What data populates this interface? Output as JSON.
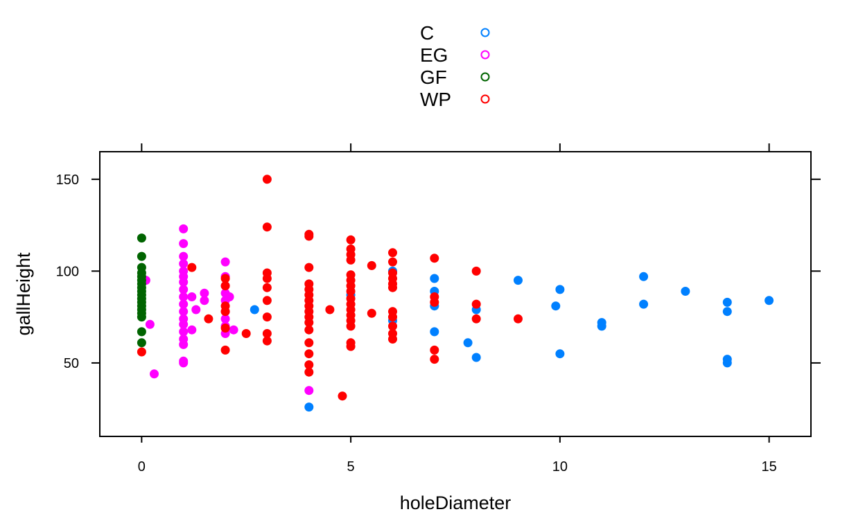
{
  "chart_data": {
    "type": "scatter",
    "title": "",
    "xlabel": "holeDiameter",
    "ylabel": "gallHeight",
    "xlim": [
      -1,
      16
    ],
    "ylim": [
      10,
      165
    ],
    "xticks": [
      0,
      5,
      10,
      15
    ],
    "yticks": [
      50,
      100,
      150
    ],
    "grid": false,
    "legend_position": "top-center",
    "series": [
      {
        "name": "C",
        "color": "#0080FF",
        "points": [
          [
            2.7,
            79
          ],
          [
            4,
            26
          ],
          [
            5,
            87
          ],
          [
            6,
            100
          ],
          [
            6,
            73
          ],
          [
            7,
            96
          ],
          [
            7,
            89
          ],
          [
            7,
            81
          ],
          [
            7,
            67
          ],
          [
            7.8,
            61
          ],
          [
            8,
            79
          ],
          [
            8,
            53
          ],
          [
            9,
            95
          ],
          [
            9.9,
            81
          ],
          [
            10,
            90
          ],
          [
            10,
            55
          ],
          [
            11,
            72
          ],
          [
            11,
            70
          ],
          [
            12,
            97
          ],
          [
            12,
            82
          ],
          [
            13,
            89
          ],
          [
            14,
            83
          ],
          [
            14,
            78
          ],
          [
            14,
            52
          ],
          [
            14,
            50
          ],
          [
            15,
            84
          ]
        ]
      },
      {
        "name": "EG",
        "color": "#FF00FF",
        "points": [
          [
            0.1,
            95
          ],
          [
            0.2,
            71
          ],
          [
            0.3,
            44
          ],
          [
            1,
            123
          ],
          [
            1,
            115
          ],
          [
            1,
            108
          ],
          [
            1,
            104
          ],
          [
            1,
            100
          ],
          [
            1,
            97
          ],
          [
            1,
            94
          ],
          [
            1,
            90
          ],
          [
            1,
            86
          ],
          [
            1,
            82
          ],
          [
            1,
            78
          ],
          [
            1,
            74
          ],
          [
            1,
            71
          ],
          [
            1,
            67
          ],
          [
            1,
            63
          ],
          [
            1,
            60
          ],
          [
            1,
            51
          ],
          [
            1,
            50
          ],
          [
            1.2,
            86
          ],
          [
            1.2,
            68
          ],
          [
            1.3,
            79
          ],
          [
            1.5,
            88
          ],
          [
            1.5,
            84
          ],
          [
            2,
            105
          ],
          [
            2,
            97
          ],
          [
            2,
            92
          ],
          [
            2,
            88
          ],
          [
            2,
            84
          ],
          [
            2,
            78
          ],
          [
            2,
            74
          ],
          [
            2,
            70
          ],
          [
            2,
            66
          ],
          [
            2.1,
            86
          ],
          [
            2.2,
            68
          ],
          [
            4,
            35
          ]
        ]
      },
      {
        "name": "GF",
        "color": "#006400",
        "points": [
          [
            0,
            118
          ],
          [
            0,
            108
          ],
          [
            0,
            102
          ],
          [
            0,
            99
          ],
          [
            0,
            97
          ],
          [
            0,
            95
          ],
          [
            0,
            93
          ],
          [
            0,
            91
          ],
          [
            0,
            89
          ],
          [
            0,
            87
          ],
          [
            0,
            85
          ],
          [
            0,
            83
          ],
          [
            0,
            81
          ],
          [
            0,
            79
          ],
          [
            0,
            77
          ],
          [
            0,
            75
          ],
          [
            0,
            67
          ],
          [
            0,
            61
          ]
        ]
      },
      {
        "name": "WP",
        "color": "#FF0000",
        "points": [
          [
            0,
            56
          ],
          [
            1.2,
            102
          ],
          [
            1.6,
            74
          ],
          [
            2,
            96
          ],
          [
            2,
            92
          ],
          [
            2,
            81
          ],
          [
            2,
            78
          ],
          [
            2,
            69
          ],
          [
            2,
            57
          ],
          [
            2.5,
            66
          ],
          [
            3,
            150
          ],
          [
            3,
            124
          ],
          [
            3,
            99
          ],
          [
            3,
            96
          ],
          [
            3,
            91
          ],
          [
            3,
            84
          ],
          [
            3,
            75
          ],
          [
            3,
            66
          ],
          [
            3,
            62
          ],
          [
            4,
            120
          ],
          [
            4,
            119
          ],
          [
            4,
            102
          ],
          [
            4,
            93
          ],
          [
            4,
            90
          ],
          [
            4,
            87
          ],
          [
            4,
            84
          ],
          [
            4,
            81
          ],
          [
            4,
            78
          ],
          [
            4,
            75
          ],
          [
            4,
            72
          ],
          [
            4,
            68
          ],
          [
            4,
            61
          ],
          [
            4,
            55
          ],
          [
            4,
            49
          ],
          [
            4,
            45
          ],
          [
            4.5,
            79
          ],
          [
            4.8,
            32
          ],
          [
            5,
            117
          ],
          [
            5,
            112
          ],
          [
            5,
            109
          ],
          [
            5,
            106
          ],
          [
            5,
            98
          ],
          [
            5,
            95
          ],
          [
            5,
            92
          ],
          [
            5,
            89
          ],
          [
            5,
            85
          ],
          [
            5,
            82
          ],
          [
            5,
            79
          ],
          [
            5,
            76
          ],
          [
            5,
            73
          ],
          [
            5,
            70
          ],
          [
            5,
            61
          ],
          [
            5,
            59
          ],
          [
            5.5,
            103
          ],
          [
            5.5,
            77
          ],
          [
            6,
            110
          ],
          [
            6,
            105
          ],
          [
            6,
            99
          ],
          [
            6,
            96
          ],
          [
            6,
            93
          ],
          [
            6,
            91
          ],
          [
            6,
            78
          ],
          [
            6,
            75
          ],
          [
            6,
            70
          ],
          [
            6,
            66
          ],
          [
            6,
            63
          ],
          [
            7,
            107
          ],
          [
            7,
            86
          ],
          [
            7,
            83
          ],
          [
            7,
            57
          ],
          [
            7,
            52
          ],
          [
            8,
            100
          ],
          [
            8,
            82
          ],
          [
            8,
            74
          ],
          [
            9,
            74
          ]
        ]
      }
    ]
  }
}
